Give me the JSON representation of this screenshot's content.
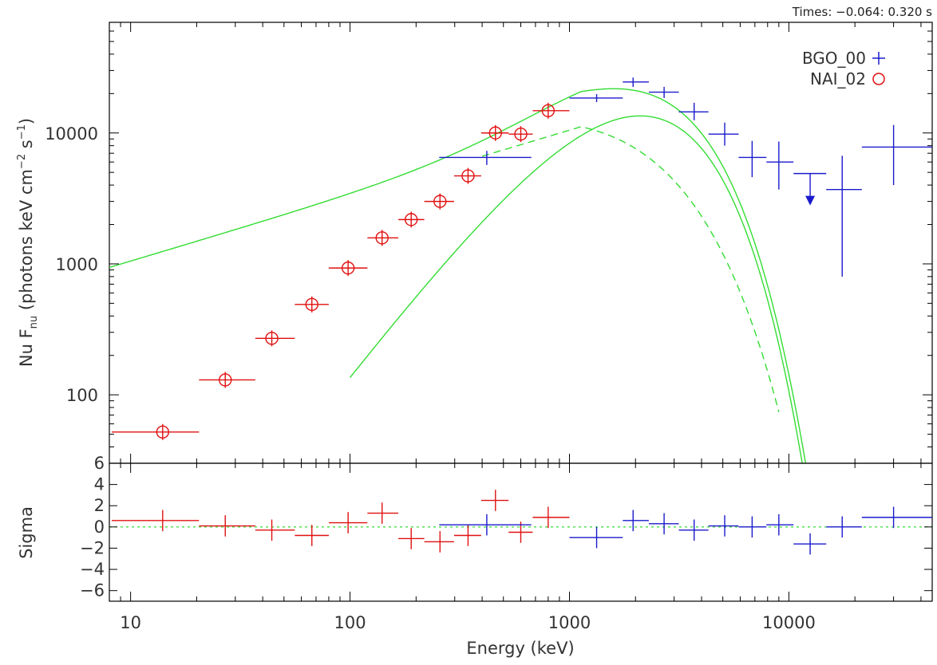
{
  "header": {
    "times_label": "Times: −0.064: 0.320 s"
  },
  "chart_data": [
    {
      "type": "scatter",
      "panel": "spectrum",
      "xlabel": "Energy (keV)",
      "ylabel": "Nu F_nu (photons keV cm^-2 s^-1)",
      "ylabel_parts": {
        "pre": "Nu F",
        "sub1": "nu",
        "mid": " (photons keV cm",
        "sup1": "−2",
        "mid2": " s",
        "sup2": "−1",
        "post": ")"
      },
      "x_scale": "log",
      "y_scale": "log",
      "xlim": [
        8,
        45000
      ],
      "ylim": [
        30,
        70000
      ],
      "x_ticks": [
        10,
        100,
        1000,
        10000
      ],
      "x_tick_labels": [
        "10",
        "100",
        "1000",
        "10000"
      ],
      "y_ticks": [
        100,
        1000,
        10000
      ],
      "y_tick_labels": [
        "100",
        "1000",
        "10000"
      ],
      "legend": {
        "position": "top-right",
        "entries": [
          {
            "name": "BGO_00",
            "color": "#1a1acc",
            "marker": "+"
          },
          {
            "name": "NAI_02",
            "color": "#e01010",
            "marker": "o"
          }
        ]
      },
      "series": [
        {
          "name": "NAI_02",
          "color": "#e01010",
          "points": [
            {
              "x": 14,
              "xlo": 8.2,
              "xhi": 20.5,
              "y": 52
            },
            {
              "x": 27,
              "xlo": 20.5,
              "xhi": 37,
              "y": 130
            },
            {
              "x": 44,
              "xlo": 37,
              "xhi": 56,
              "y": 270
            },
            {
              "x": 67,
              "xlo": 56,
              "xhi": 80,
              "y": 490
            },
            {
              "x": 98,
              "xlo": 80,
              "xhi": 120,
              "y": 930
            },
            {
              "x": 140,
              "xlo": 120,
              "xhi": 166,
              "y": 1580
            },
            {
              "x": 190,
              "xlo": 166,
              "xhi": 218,
              "y": 2180
            },
            {
              "x": 257,
              "xlo": 218,
              "xhi": 298,
              "y": 3000
            },
            {
              "x": 345,
              "xlo": 298,
              "xhi": 396,
              "y": 4700
            },
            {
              "x": 460,
              "xlo": 396,
              "xhi": 528,
              "y": 10000
            },
            {
              "x": 600,
              "xlo": 528,
              "xhi": 680,
              "y": 9800
            },
            {
              "x": 800,
              "xlo": 680,
              "xhi": 1000,
              "y": 14800
            }
          ]
        },
        {
          "name": "BGO_00",
          "color": "#1a1acc",
          "points": [
            {
              "x": 420,
              "xlo": 255,
              "xhi": 670,
              "y": 6500,
              "ylo": 5700,
              "yhi": 7300
            },
            {
              "x": 1330,
              "xlo": 1000,
              "xhi": 1750,
              "y": 18500,
              "ylo": 17200,
              "yhi": 19800
            },
            {
              "x": 1950,
              "xlo": 1750,
              "xhi": 2300,
              "y": 24500,
              "ylo": 22500,
              "yhi": 26500
            },
            {
              "x": 2700,
              "xlo": 2300,
              "xhi": 3150,
              "y": 20500,
              "ylo": 18500,
              "yhi": 22500
            },
            {
              "x": 3700,
              "xlo": 3150,
              "xhi": 4300,
              "y": 14500,
              "ylo": 12500,
              "yhi": 17000
            },
            {
              "x": 5100,
              "xlo": 4300,
              "xhi": 5900,
              "y": 9800,
              "ylo": 8000,
              "yhi": 12000
            },
            {
              "x": 6800,
              "xlo": 5900,
              "xhi": 7900,
              "y": 6500,
              "ylo": 4600,
              "yhi": 8700
            },
            {
              "x": 9000,
              "xlo": 7900,
              "xhi": 10500,
              "y": 6000,
              "ylo": 3700,
              "yhi": 8600
            },
            {
              "x": 12500,
              "xlo": 10500,
              "xhi": 14800,
              "y": 4900,
              "upper_limit": true
            },
            {
              "x": 17500,
              "xlo": 14800,
              "xhi": 21500,
              "y": 3700,
              "ylo": 800,
              "yhi": 6700
            },
            {
              "x": 30000,
              "xlo": 21500,
              "xhi": 45000,
              "y": 7800,
              "ylo": 4000,
              "yhi": 11500
            }
          ]
        }
      ],
      "model": {
        "color": "#33dd33",
        "components": [
          {
            "shape": "total",
            "line": "solid"
          },
          {
            "shape": "nonthermal",
            "line": "dashed"
          },
          {
            "shape": "peaked",
            "line": "solid"
          }
        ]
      }
    },
    {
      "type": "scatter",
      "panel": "residuals",
      "xlabel": "Energy (keV)",
      "ylabel": "Sigma",
      "x_scale": "log",
      "xlim": [
        8,
        45000
      ],
      "ylim": [
        -7,
        6
      ],
      "y_ticks": [
        -6,
        -4,
        -2,
        0,
        2,
        4,
        6
      ],
      "y_tick_labels": [
        "−6",
        "−4",
        "−2",
        "0",
        "2",
        "4",
        "6"
      ],
      "zero_line": {
        "y": 0,
        "color": "#33dd33",
        "style": "dotted"
      },
      "series": [
        {
          "name": "NAI_02",
          "color": "#e01010",
          "points": [
            {
              "x": 14,
              "xlo": 8.2,
              "xhi": 20.5,
              "y": 0.6
            },
            {
              "x": 27,
              "xlo": 20.5,
              "xhi": 37,
              "y": 0.1
            },
            {
              "x": 44,
              "xlo": 37,
              "xhi": 56,
              "y": -0.3
            },
            {
              "x": 67,
              "xlo": 56,
              "xhi": 80,
              "y": -0.8
            },
            {
              "x": 98,
              "xlo": 80,
              "xhi": 120,
              "y": 0.4
            },
            {
              "x": 140,
              "xlo": 120,
              "xhi": 166,
              "y": 1.3
            },
            {
              "x": 190,
              "xlo": 166,
              "xhi": 218,
              "y": -1.1
            },
            {
              "x": 257,
              "xlo": 218,
              "xhi": 298,
              "y": -1.4
            },
            {
              "x": 345,
              "xlo": 298,
              "xhi": 396,
              "y": -0.8
            },
            {
              "x": 460,
              "xlo": 396,
              "xhi": 528,
              "y": 2.5
            },
            {
              "x": 600,
              "xlo": 528,
              "xhi": 680,
              "y": -0.5
            },
            {
              "x": 800,
              "xlo": 680,
              "xhi": 1000,
              "y": 0.9
            }
          ]
        },
        {
          "name": "BGO_00",
          "color": "#1a1acc",
          "points": [
            {
              "x": 420,
              "xlo": 255,
              "xhi": 670,
              "y": 0.2
            },
            {
              "x": 1330,
              "xlo": 1000,
              "xhi": 1750,
              "y": -1.0
            },
            {
              "x": 1950,
              "xlo": 1750,
              "xhi": 2300,
              "y": 0.6
            },
            {
              "x": 2700,
              "xlo": 2300,
              "xhi": 3150,
              "y": 0.3
            },
            {
              "x": 3700,
              "xlo": 3150,
              "xhi": 4300,
              "y": -0.3
            },
            {
              "x": 5100,
              "xlo": 4300,
              "xhi": 5900,
              "y": 0.1
            },
            {
              "x": 6800,
              "xlo": 5900,
              "xhi": 7900,
              "y": 0.0
            },
            {
              "x": 9000,
              "xlo": 7900,
              "xhi": 10500,
              "y": 0.2
            },
            {
              "x": 12500,
              "xlo": 10500,
              "xhi": 14800,
              "y": -1.6
            },
            {
              "x": 17500,
              "xlo": 14800,
              "xhi": 21500,
              "y": 0.0
            },
            {
              "x": 30000,
              "xlo": 21500,
              "xhi": 45000,
              "y": 0.9
            }
          ]
        }
      ]
    }
  ]
}
